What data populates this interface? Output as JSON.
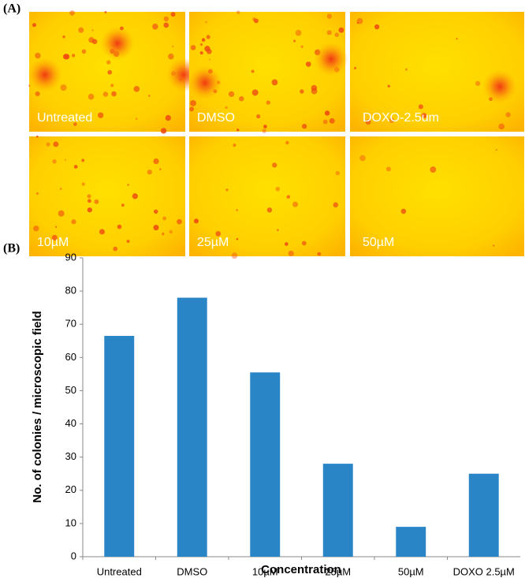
{
  "panels": {
    "a_label": "(A)",
    "b_label": "(B)",
    "images": [
      "Untreated",
      "DMSO",
      "DOXO-2.5um",
      "10µM",
      "25µM",
      "50µM"
    ]
  },
  "chart_data": {
    "type": "bar",
    "categories": [
      "Untreated",
      "DMSO",
      "10µM",
      "25µM",
      "50µM",
      "DOXO 2.5µM"
    ],
    "values": [
      66.5,
      78,
      55.5,
      28,
      9,
      25
    ],
    "color": "#2a85c6",
    "x_label": "Concentration",
    "y_label": "No. of colonies / microscopic field",
    "ylim": [
      0,
      90
    ],
    "yticks": [
      0,
      10,
      20,
      30,
      40,
      50,
      60,
      70,
      80,
      90
    ],
    "grid": false
  }
}
